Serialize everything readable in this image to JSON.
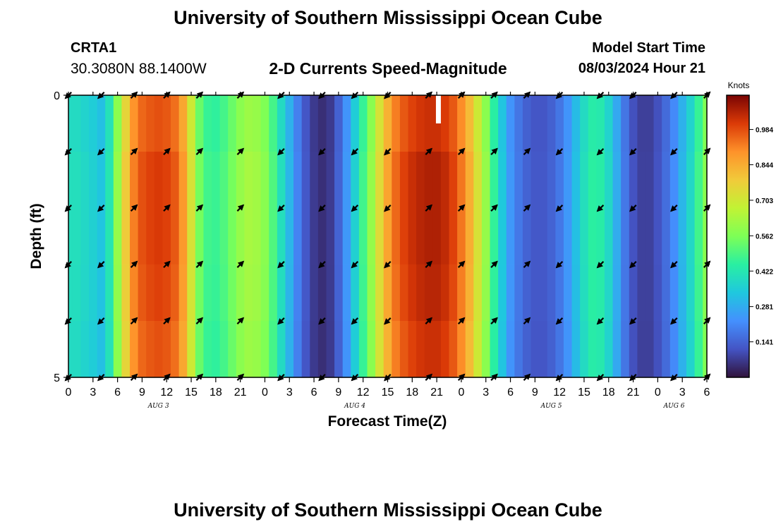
{
  "header": {
    "title": "University of Southern Mississippi Ocean Cube",
    "station": "CRTA1",
    "coordinates": "30.3080N  88.1400W",
    "subtitle": "2-D Currents Speed-Magnitude",
    "model_start_label": "Model Start Time",
    "model_start_value": "08/03/2024 Hour 21"
  },
  "footer": {
    "title": "University of Southern Mississippi Ocean Cube"
  },
  "chart_data": {
    "type": "heatmap",
    "title": "2-D Currents Speed-Magnitude",
    "xlabel": "Forecast Time(Z)",
    "ylabel": "Depth (ft)",
    "x_hours_range": [
      0,
      78
    ],
    "y_range": [
      0,
      5
    ],
    "y_ticks": [
      "0",
      "5"
    ],
    "x_tick_labels": [
      "0",
      "3",
      "6",
      "9",
      "12",
      "15",
      "18",
      "21",
      "0",
      "3",
      "6",
      "9",
      "12",
      "15",
      "18",
      "21",
      "0",
      "3",
      "6",
      "9",
      "12",
      "15",
      "18",
      "21",
      "0",
      "3",
      "6"
    ],
    "date_labels": [
      {
        "label": "AUG 3",
        "hour": 11
      },
      {
        "label": "AUG 4",
        "hour": 35
      },
      {
        "label": "AUG 5",
        "hour": 59
      },
      {
        "label": "AUG 6",
        "hour": 74
      }
    ],
    "colorbar": {
      "unit": "Knots",
      "min": 0,
      "max": 1.12,
      "ticks": [
        "0.141",
        "0.281",
        "0.422",
        "0.562",
        "0.703",
        "0.844",
        "0.984"
      ]
    },
    "speed_series_hours": [
      0,
      1,
      2,
      3,
      4,
      5,
      6,
      7,
      8,
      9,
      10,
      11,
      12,
      13,
      14,
      15,
      16,
      17,
      18,
      19,
      20,
      21,
      22,
      23,
      24,
      25,
      26,
      27,
      28,
      29,
      30,
      31,
      32,
      33,
      34,
      35,
      36,
      37,
      38,
      39,
      40,
      41,
      42,
      43,
      44,
      45,
      46,
      47,
      48,
      49,
      50,
      51,
      52,
      53,
      54,
      55,
      56,
      57,
      58,
      59,
      60,
      61,
      62,
      63,
      64,
      65,
      66,
      67,
      68,
      69,
      70,
      71,
      72,
      73,
      74,
      75,
      76,
      77,
      78
    ],
    "speed_knots": [
      0.4,
      0.4,
      0.38,
      0.36,
      0.33,
      0.42,
      0.6,
      0.78,
      0.92,
      0.98,
      1.0,
      1.01,
      1.0,
      0.97,
      0.88,
      0.72,
      0.55,
      0.48,
      0.47,
      0.5,
      0.55,
      0.6,
      0.63,
      0.62,
      0.58,
      0.5,
      0.4,
      0.3,
      0.2,
      0.12,
      0.07,
      0.05,
      0.07,
      0.14,
      0.24,
      0.36,
      0.48,
      0.6,
      0.74,
      0.86,
      0.95,
      1.0,
      1.03,
      1.05,
      1.06,
      1.06,
      1.04,
      1.0,
      0.93,
      0.84,
      0.72,
      0.6,
      0.46,
      0.34,
      0.24,
      0.18,
      0.14,
      0.12,
      0.12,
      0.14,
      0.18,
      0.24,
      0.32,
      0.4,
      0.45,
      0.44,
      0.38,
      0.28,
      0.18,
      0.11,
      0.08,
      0.08,
      0.11,
      0.16,
      0.22,
      0.3,
      0.38,
      0.48,
      0.58
    ],
    "depth_factors": [
      0.97,
      1.0,
      1.0,
      0.99,
      0.97
    ],
    "arrow_hours": [
      0,
      4,
      8,
      12,
      16,
      21,
      26,
      31,
      35,
      39,
      44,
      48,
      52,
      56,
      60,
      65,
      69,
      74,
      78
    ],
    "arrow_directions_deg": [
      135,
      135,
      -45,
      -45,
      -45,
      -45,
      135,
      135,
      135,
      135,
      -45,
      -45,
      -45,
      -45,
      135,
      135,
      135,
      135,
      -45
    ],
    "arrow_depths": [
      0,
      1,
      2,
      3,
      4,
      5
    ],
    "missing_marker_hour": 45.2
  }
}
